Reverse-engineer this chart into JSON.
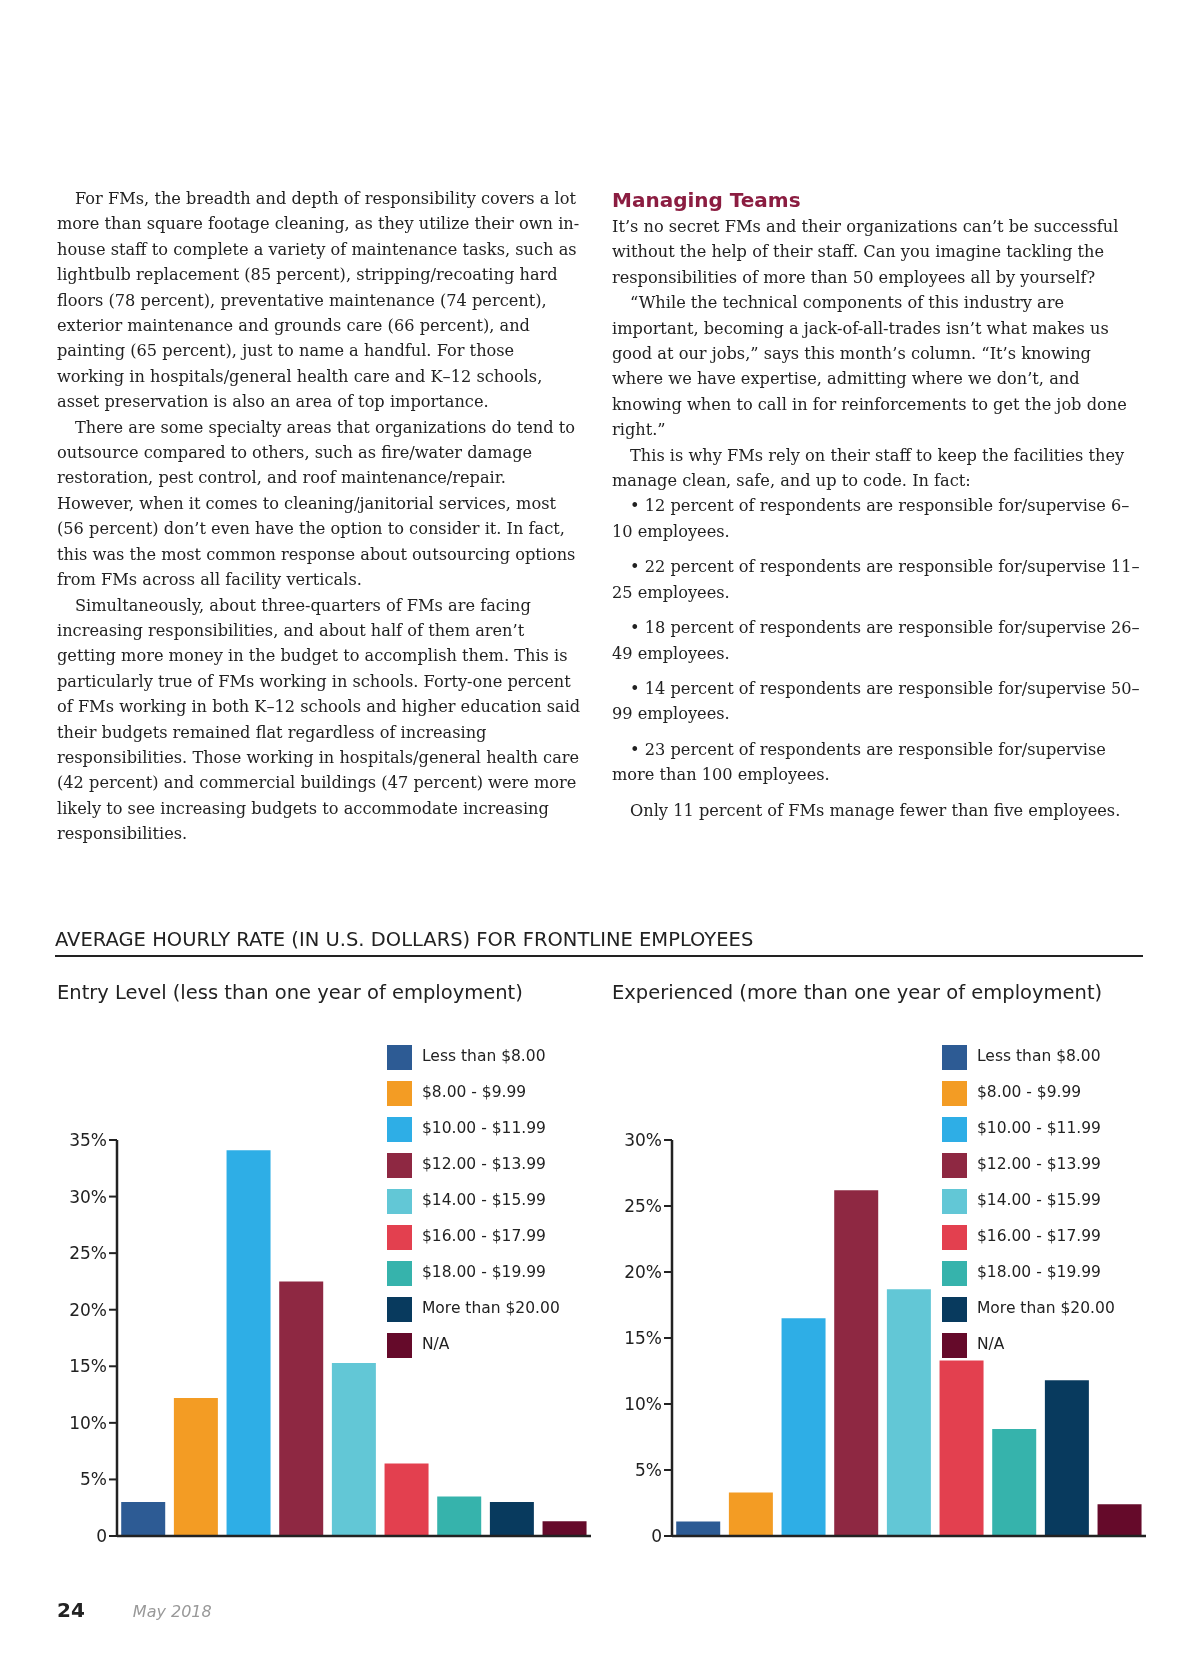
{
  "chart_data": [
    {
      "type": "other",
      "annotations": [
        "For FMs, the breadth and depth of responsibility covers a lot more than square footage cleaning, as they utilize their own in-house staff to complete a variety of maintenance tasks, such as lightbulb replacement (85 percent), stripping/recoating hard floors (78 percent), preventative maintenance (74 percent), exterior maintenance and grounds care (66 percent), and painting (65 percent), just to name a handful. For those working in hospitals/general health care and K–12 schools, asset preservation is also an area of top importance.",
        "There are some specialty areas that organizations do tend to outsource compared to others, such as fire/water damage restoration, pest control, and roof maintenance/repair. However, when it comes to cleaning/janitorial services, most (56 percent) don’t even have the option to consider it. In fact, this was the most common response about outsourcing options from FMs across all facility verticals.",
        "Simultaneously, about three-quarters of FMs are facing increasing responsibilities, and about half of them aren’t getting more money in the budget to accomplish them. This is particularly true of FMs working in schools. Forty-one percent of FMs working in both K–12 schools and higher education said their budgets remained flat regardless of increasing responsibilities. Those working in hospitals/general health care (42 percent) and commercial buildings (47 percent) were more likely to see increasing budgets to accommodate increasing responsibilities."
      ]
    },
    {
      "type": "other",
      "title": "Managing Teams",
      "annotations": [
        "It’s no secret FMs and their organizations can’t be successful without the help of their staff. Can you imagine tackling the responsibilities of more than 50 employees all by yourself?",
        "“While the technical components of this industry are important, becoming a jack-of-all-trades isn’t what makes us good at our jobs,” says this month’s column. “It’s knowing where we have expertise, admitting where we don’t, and knowing when to call in for reinforcements to get the job done right.”",
        "This is why FMs rely on their staff to keep the facilities they manage clean, safe, and up to code. In fact:",
        "• 12 percent of respondents are responsible for/supervise 6–10 employees.",
        "• 22 percent of respondents are responsible for/supervise 11–25 employees.",
        "• 18 percent of respondents are responsible for/supervise 26–49 employees.",
        "• 14 percent of respondents are responsible for/supervise 50–99 employees.",
        "• 23 percent of respondents are responsible for/supervise more than 100 employees.",
        "Only 11 percent of FMs manage fewer than five employees."
      ]
    },
    {
      "type": "bar",
      "title": "AVERAGE HOURLY RATE (IN U.S. DOLLARS) FOR FRONTLINE EMPLOYEES",
      "subtitle": "Entry Level (less than one year of employment)",
      "categories": [
        null,
        null,
        null,
        null,
        null,
        null,
        null,
        null,
        null
      ],
      "stacked": true,
      "series": [
        {
          "name": "Less than $8.00",
          "color": "#2d5b94",
          "values": [
            3.0,
            null,
            null,
            null,
            null,
            null,
            null,
            null,
            null
          ]
        },
        {
          "name": "$8.00 - $9.99",
          "color": "#f39c24",
          "values": [
            null,
            12.2,
            null,
            null,
            null,
            null,
            null,
            null,
            null
          ]
        },
        {
          "name": "$10.00 - $11.99",
          "color": "#2eaee6",
          "values": [
            null,
            null,
            34.1,
            null,
            null,
            null,
            null,
            null,
            null
          ]
        },
        {
          "name": "$12.00 - $13.99",
          "color": "#8e2842",
          "values": [
            null,
            null,
            null,
            22.5,
            null,
            null,
            null,
            null,
            null
          ]
        },
        {
          "name": "$14.00 - $15.99",
          "color": "#62c7d6",
          "values": [
            null,
            null,
            null,
            null,
            15.3,
            null,
            null,
            null,
            null
          ]
        },
        {
          "name": "$16.00 - $17.99",
          "color": "#e3404f",
          "values": [
            null,
            null,
            null,
            null,
            null,
            6.4,
            null,
            null,
            null
          ]
        },
        {
          "name": "$18.00 - $19.99",
          "color": "#36b3ac",
          "values": [
            null,
            null,
            null,
            null,
            null,
            null,
            3.5,
            null,
            null
          ]
        },
        {
          "name": "More than $20.00",
          "color": "#083a5e",
          "values": [
            null,
            null,
            null,
            null,
            null,
            null,
            null,
            3.0,
            null
          ]
        },
        {
          "name": "N/A",
          "color": "#650a2a",
          "values": [
            null,
            null,
            null,
            null,
            null,
            null,
            null,
            null,
            1.3
          ]
        }
      ],
      "ylim": [
        0,
        35
      ],
      "yticks": [
        0,
        {
          "value": 5,
          "label": "5%"
        },
        {
          "value": 10,
          "label": "10%"
        },
        {
          "value": 15,
          "label": "15%"
        },
        {
          "value": 20,
          "label": "20%"
        },
        {
          "value": 25,
          "label": "25%"
        },
        {
          "value": 30,
          "label": "30%"
        },
        {
          "value": 35,
          "label": "35%"
        }
      ],
      "tick_labels": "y",
      "legend": "top right",
      "annotations": [
        "24",
        "May 2018"
      ]
    },
    {
      "type": "bar",
      "subtitle": "Experienced (more than one year of employment)",
      "categories": [
        null,
        null,
        null,
        null,
        null,
        null,
        null,
        null,
        null
      ],
      "stacked": true,
      "series": [
        {
          "name": "Less than $8.00",
          "color": "#2d5b94",
          "values": [
            1.1,
            null,
            null,
            null,
            null,
            null,
            null,
            null,
            null
          ]
        },
        {
          "name": "$8.00 - $9.99",
          "color": "#f39c24",
          "values": [
            null,
            3.3,
            null,
            null,
            null,
            null,
            null,
            null,
            null
          ]
        },
        {
          "name": "$10.00 - $11.99",
          "color": "#2eaee6",
          "values": [
            null,
            null,
            16.5,
            null,
            null,
            null,
            null,
            null,
            null
          ]
        },
        {
          "name": "$12.00 - $13.99",
          "color": "#8e2842",
          "values": [
            null,
            null,
            null,
            26.2,
            null,
            null,
            null,
            null,
            null
          ]
        },
        {
          "name": "$14.00 - $15.99",
          "color": "#62c7d6",
          "values": [
            null,
            null,
            null,
            null,
            18.7,
            null,
            null,
            null,
            null
          ]
        },
        {
          "name": "$16.00 - $17.99",
          "color": "#e3404f",
          "values": [
            null,
            null,
            null,
            null,
            null,
            13.3,
            null,
            null,
            null
          ]
        },
        {
          "name": "$18.00 - $19.99",
          "color": "#36b3ac",
          "values": [
            null,
            null,
            null,
            null,
            null,
            null,
            8.1,
            null,
            null
          ]
        },
        {
          "name": "More than $20.00",
          "color": "#083a5e",
          "values": [
            null,
            null,
            null,
            null,
            null,
            null,
            null,
            11.8,
            null
          ]
        },
        {
          "name": "N/A",
          "color": "#650a2a",
          "values": [
            null,
            null,
            null,
            null,
            null,
            null,
            null,
            null,
            2.4
          ]
        }
      ],
      "ylim": [
        0,
        30
      ],
      "yticks": [
        0,
        {
          "value": 5,
          "label": "5%"
        },
        {
          "value": 10,
          "label": "10%"
        },
        {
          "value": 15,
          "label": "15%"
        },
        {
          "value": 20,
          "label": "20%"
        },
        {
          "value": 25,
          "label": "25%"
        },
        {
          "value": 30,
          "label": "30%"
        }
      ],
      "tick_labels": "y",
      "legend": "top right"
    }
  ]
}
